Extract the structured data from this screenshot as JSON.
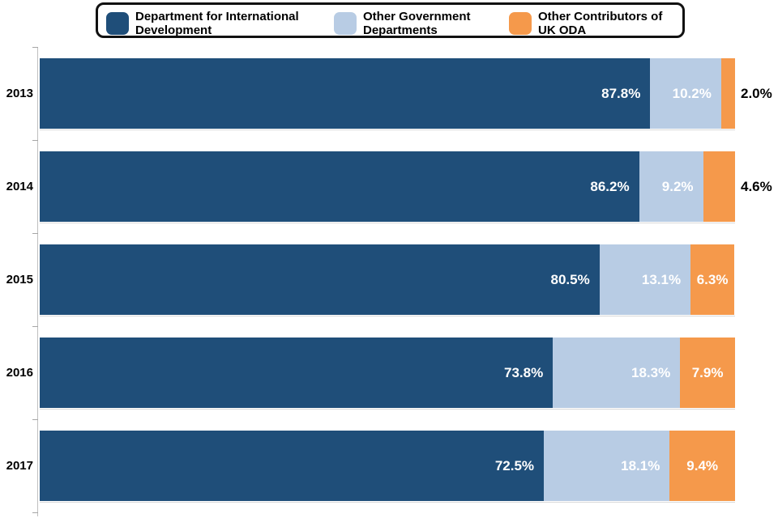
{
  "colors": {
    "series_dfid": "#1F4E79",
    "series_ogd": "#B8CCE4",
    "series_oda": "#F5994B",
    "axis": "#BFBFBF",
    "tick": "#A6A6A6",
    "row_line": "#D9D9D9",
    "label_inside": "#FFFFFF",
    "label_outside": "#000000",
    "legend_border": "#111111"
  },
  "chart_data": {
    "type": "bar",
    "orientation": "horizontal",
    "stacked": true,
    "unit": "%",
    "xlim": [
      0,
      100
    ],
    "grid": false,
    "legend_position": "top",
    "categories": [
      "2013",
      "2014",
      "2015",
      "2016",
      "2017"
    ],
    "series": [
      {
        "name": "Department for International Development",
        "color": "#1F4E79",
        "values": [
          87.8,
          86.2,
          80.5,
          73.8,
          72.5
        ]
      },
      {
        "name": "Other Government Departments",
        "color": "#B8CCE4",
        "values": [
          10.2,
          9.2,
          13.1,
          18.3,
          18.1
        ]
      },
      {
        "name": "Other Contributors of UK ODA",
        "color": "#F5994B",
        "values": [
          2.0,
          4.6,
          6.3,
          7.9,
          9.4
        ]
      }
    ],
    "value_labels": [
      [
        "87.8%",
        "10.2%",
        "2.0%"
      ],
      [
        "86.2%",
        "9.2%",
        "4.6%"
      ],
      [
        "80.5%",
        "13.1%",
        "6.3%"
      ],
      [
        "73.8%",
        "18.3%",
        "7.9%"
      ],
      [
        "72.5%",
        "18.1%",
        "9.4%"
      ]
    ]
  }
}
